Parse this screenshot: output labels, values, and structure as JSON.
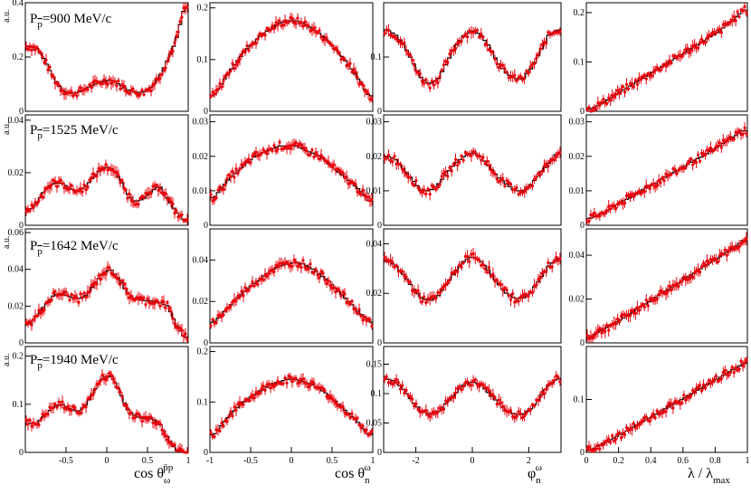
{
  "figure": {
    "data_color": "#e8000b",
    "model_color": "#000000",
    "au_label": "a.u.",
    "row_titles": [
      {
        "p": "P",
        "sub": "p",
        "value": "=900 MeV/c"
      },
      {
        "p": "P",
        "sub": "p",
        "value": "=1525 MeV/c"
      },
      {
        "p": "P",
        "sub": "p",
        "value": "=1642 MeV/c"
      },
      {
        "p": "P",
        "sub": "p",
        "value": "=1940 MeV/c"
      }
    ],
    "x_titles": [
      {
        "main": "cos θ",
        "sub": "ω",
        "sup": "p̄p"
      },
      {
        "main": "cos θ",
        "sub": "n",
        "sup": "ω"
      },
      {
        "main": "φ",
        "sub": "n",
        "sup": "ω"
      },
      {
        "main": "λ / λ",
        "sub": "max",
        "sup": ""
      }
    ]
  },
  "chart_data": [
    {
      "type": "line",
      "row": 0,
      "col": 0,
      "xlim": [
        -1,
        1
      ],
      "ylim": [
        0,
        0.4
      ],
      "xticks": [],
      "xtick_labels": [],
      "yticks": [
        0,
        0.2,
        0.4
      ],
      "ytick_labels": [
        "0",
        "0.2",
        "0.4"
      ],
      "show_au": true,
      "x": [
        -0.95,
        -0.85,
        -0.75,
        -0.65,
        -0.55,
        -0.45,
        -0.35,
        -0.25,
        -0.15,
        -0.05,
        0.05,
        0.15,
        0.25,
        0.35,
        0.45,
        0.55,
        0.65,
        0.75,
        0.85,
        0.95
      ],
      "y": [
        0.24,
        0.23,
        0.18,
        0.12,
        0.08,
        0.065,
        0.07,
        0.085,
        0.1,
        0.11,
        0.115,
        0.1,
        0.08,
        0.07,
        0.07,
        0.09,
        0.13,
        0.19,
        0.26,
        0.38
      ]
    },
    {
      "type": "line",
      "row": 0,
      "col": 1,
      "xlim": [
        -1,
        1
      ],
      "ylim": [
        0,
        0.21
      ],
      "xticks": [],
      "xtick_labels": [],
      "yticks": [
        0,
        0.1,
        0.2
      ],
      "ytick_labels": [
        "0",
        "0.1",
        "0.2"
      ],
      "show_au": false,
      "x": [
        -0.95,
        -0.85,
        -0.75,
        -0.65,
        -0.55,
        -0.45,
        -0.35,
        -0.25,
        -0.15,
        -0.05,
        0.05,
        0.15,
        0.25,
        0.35,
        0.45,
        0.55,
        0.65,
        0.75,
        0.85,
        0.95
      ],
      "y": [
        0.03,
        0.055,
        0.08,
        0.1,
        0.12,
        0.135,
        0.15,
        0.16,
        0.17,
        0.175,
        0.175,
        0.17,
        0.16,
        0.15,
        0.135,
        0.12,
        0.1,
        0.08,
        0.055,
        0.03
      ]
    },
    {
      "type": "line",
      "row": 0,
      "col": 2,
      "xlim": [
        -3.14,
        3.14
      ],
      "ylim": [
        0,
        0.2
      ],
      "xticks": [],
      "xtick_labels": [],
      "yticks": [
        0,
        0.1
      ],
      "ytick_labels": [
        "0",
        "0.1"
      ],
      "show_au": false,
      "x": [
        -3.0,
        -2.7,
        -2.4,
        -2.1,
        -1.8,
        -1.5,
        -1.2,
        -0.9,
        -0.6,
        -0.3,
        0.0,
        0.3,
        0.6,
        0.9,
        1.2,
        1.5,
        1.8,
        2.1,
        2.4,
        2.7,
        3.0
      ],
      "y": [
        0.15,
        0.14,
        0.12,
        0.09,
        0.06,
        0.05,
        0.06,
        0.09,
        0.12,
        0.14,
        0.15,
        0.14,
        0.12,
        0.09,
        0.07,
        0.06,
        0.06,
        0.08,
        0.11,
        0.14,
        0.15
      ]
    },
    {
      "type": "line",
      "row": 0,
      "col": 3,
      "xlim": [
        0,
        1
      ],
      "ylim": [
        0,
        0.22
      ],
      "xticks": [],
      "xtick_labels": [],
      "yticks": [
        0,
        0.1,
        0.2
      ],
      "ytick_labels": [
        "0",
        "0.1",
        "0.2"
      ],
      "show_au": false,
      "x": [
        0.025,
        0.075,
        0.125,
        0.175,
        0.225,
        0.275,
        0.325,
        0.375,
        0.425,
        0.475,
        0.525,
        0.575,
        0.625,
        0.675,
        0.725,
        0.775,
        0.825,
        0.875,
        0.925,
        0.975
      ],
      "y": [
        0.005,
        0.012,
        0.022,
        0.032,
        0.042,
        0.052,
        0.062,
        0.072,
        0.082,
        0.092,
        0.102,
        0.112,
        0.122,
        0.132,
        0.142,
        0.152,
        0.162,
        0.176,
        0.19,
        0.205
      ]
    },
    {
      "type": "line",
      "row": 1,
      "col": 0,
      "xlim": [
        -1,
        1
      ],
      "ylim": [
        0,
        0.042
      ],
      "xticks": [],
      "xtick_labels": [],
      "yticks": [
        0,
        0.02,
        0.04
      ],
      "ytick_labels": [
        "0",
        "0.02",
        "0.04"
      ],
      "show_au": true,
      "x": [
        -0.95,
        -0.85,
        -0.75,
        -0.65,
        -0.55,
        -0.45,
        -0.35,
        -0.25,
        -0.15,
        -0.05,
        0.05,
        0.15,
        0.25,
        0.35,
        0.45,
        0.55,
        0.65,
        0.75,
        0.85,
        0.95
      ],
      "y": [
        0.006,
        0.009,
        0.014,
        0.016,
        0.016,
        0.014,
        0.013,
        0.015,
        0.019,
        0.022,
        0.022,
        0.018,
        0.012,
        0.009,
        0.01,
        0.013,
        0.015,
        0.01,
        0.005,
        0.002
      ]
    },
    {
      "type": "line",
      "row": 1,
      "col": 1,
      "xlim": [
        -1,
        1
      ],
      "ylim": [
        0,
        0.032
      ],
      "xticks": [],
      "xtick_labels": [],
      "yticks": [
        0,
        0.01,
        0.02,
        0.03
      ],
      "ytick_labels": [
        "0",
        "0.01",
        "0.02",
        "0.03"
      ],
      "show_au": false,
      "x": [
        -0.95,
        -0.85,
        -0.75,
        -0.65,
        -0.55,
        -0.45,
        -0.35,
        -0.25,
        -0.15,
        -0.05,
        0.05,
        0.15,
        0.25,
        0.35,
        0.45,
        0.55,
        0.65,
        0.75,
        0.85,
        0.95
      ],
      "y": [
        0.008,
        0.011,
        0.014,
        0.016,
        0.018,
        0.02,
        0.021,
        0.022,
        0.023,
        0.023,
        0.023,
        0.022,
        0.021,
        0.02,
        0.018,
        0.016,
        0.014,
        0.012,
        0.01,
        0.007
      ]
    },
    {
      "type": "line",
      "row": 1,
      "col": 2,
      "xlim": [
        -3.14,
        3.14
      ],
      "ylim": [
        0,
        0.032
      ],
      "xticks": [],
      "xtick_labels": [],
      "yticks": [
        0,
        0.01,
        0.02,
        0.03
      ],
      "ytick_labels": [
        "0",
        "0.01",
        "0.02",
        "0.03"
      ],
      "show_au": false,
      "x": [
        -3.0,
        -2.7,
        -2.4,
        -2.1,
        -1.8,
        -1.5,
        -1.2,
        -0.9,
        -0.6,
        -0.3,
        0.0,
        0.3,
        0.6,
        0.9,
        1.2,
        1.5,
        1.8,
        2.1,
        2.4,
        2.7,
        3.0
      ],
      "y": [
        0.02,
        0.019,
        0.016,
        0.013,
        0.01,
        0.01,
        0.012,
        0.015,
        0.018,
        0.02,
        0.021,
        0.02,
        0.017,
        0.014,
        0.012,
        0.01,
        0.01,
        0.012,
        0.015,
        0.018,
        0.021
      ]
    },
    {
      "type": "line",
      "row": 1,
      "col": 3,
      "xlim": [
        0,
        1
      ],
      "ylim": [
        0,
        0.032
      ],
      "xticks": [],
      "xtick_labels": [],
      "yticks": [
        0,
        0.01,
        0.02,
        0.03
      ],
      "ytick_labels": [
        "0",
        "0.01",
        "0.02",
        "0.03"
      ],
      "show_au": false,
      "x": [
        0.025,
        0.075,
        0.125,
        0.175,
        0.225,
        0.275,
        0.325,
        0.375,
        0.425,
        0.475,
        0.525,
        0.575,
        0.625,
        0.675,
        0.725,
        0.775,
        0.825,
        0.875,
        0.925,
        0.975
      ],
      "y": [
        0.002,
        0.003,
        0.004,
        0.0055,
        0.007,
        0.008,
        0.0095,
        0.011,
        0.012,
        0.0135,
        0.015,
        0.016,
        0.0175,
        0.019,
        0.02,
        0.0215,
        0.023,
        0.0245,
        0.026,
        0.0275
      ]
    },
    {
      "type": "line",
      "row": 2,
      "col": 0,
      "xlim": [
        -1,
        1
      ],
      "ylim": [
        0,
        0.062
      ],
      "xticks": [],
      "xtick_labels": [],
      "yticks": [
        0,
        0.02,
        0.04,
        0.06
      ],
      "ytick_labels": [
        "0",
        "0.02",
        "0.04",
        "0.06"
      ],
      "show_au": true,
      "x": [
        -0.95,
        -0.85,
        -0.75,
        -0.65,
        -0.55,
        -0.45,
        -0.35,
        -0.25,
        -0.15,
        -0.05,
        0.05,
        0.15,
        0.25,
        0.35,
        0.45,
        0.55,
        0.65,
        0.75,
        0.85,
        0.95
      ],
      "y": [
        0.01,
        0.015,
        0.021,
        0.026,
        0.027,
        0.025,
        0.024,
        0.026,
        0.032,
        0.038,
        0.04,
        0.035,
        0.027,
        0.024,
        0.023,
        0.023,
        0.022,
        0.02,
        0.01,
        0.003
      ]
    },
    {
      "type": "line",
      "row": 2,
      "col": 1,
      "xlim": [
        -1,
        1
      ],
      "ylim": [
        0,
        0.055
      ],
      "xticks": [],
      "xtick_labels": [],
      "yticks": [
        0,
        0.02,
        0.04
      ],
      "ytick_labels": [
        "0",
        "0.02",
        "0.04"
      ],
      "show_au": false,
      "x": [
        -0.95,
        -0.85,
        -0.75,
        -0.65,
        -0.55,
        -0.45,
        -0.35,
        -0.25,
        -0.15,
        -0.05,
        0.05,
        0.15,
        0.25,
        0.35,
        0.45,
        0.55,
        0.65,
        0.75,
        0.85,
        0.95
      ],
      "y": [
        0.01,
        0.014,
        0.018,
        0.022,
        0.026,
        0.029,
        0.032,
        0.035,
        0.037,
        0.038,
        0.039,
        0.038,
        0.036,
        0.033,
        0.03,
        0.026,
        0.022,
        0.018,
        0.014,
        0.01
      ]
    },
    {
      "type": "line",
      "row": 2,
      "col": 2,
      "xlim": [
        -3.14,
        3.14
      ],
      "ylim": [
        0,
        0.046
      ],
      "xticks": [],
      "xtick_labels": [],
      "yticks": [
        0,
        0.02,
        0.04
      ],
      "ytick_labels": [
        "0",
        "0.02",
        "0.04"
      ],
      "show_au": false,
      "x": [
        -3.0,
        -2.7,
        -2.4,
        -2.1,
        -1.8,
        -1.5,
        -1.2,
        -0.9,
        -0.6,
        -0.3,
        0.0,
        0.3,
        0.6,
        0.9,
        1.2,
        1.5,
        1.8,
        2.1,
        2.4,
        2.7,
        3.0
      ],
      "y": [
        0.033,
        0.031,
        0.027,
        0.022,
        0.018,
        0.017,
        0.019,
        0.024,
        0.029,
        0.033,
        0.035,
        0.033,
        0.029,
        0.024,
        0.02,
        0.018,
        0.018,
        0.021,
        0.026,
        0.031,
        0.034
      ]
    },
    {
      "type": "line",
      "row": 2,
      "col": 3,
      "xlim": [
        0,
        1
      ],
      "ylim": [
        0,
        0.052
      ],
      "xticks": [],
      "xtick_labels": [],
      "yticks": [
        0,
        0.02,
        0.04
      ],
      "ytick_labels": [
        "0",
        "0.02",
        "0.04"
      ],
      "show_au": false,
      "x": [
        0.025,
        0.075,
        0.125,
        0.175,
        0.225,
        0.275,
        0.325,
        0.375,
        0.425,
        0.475,
        0.525,
        0.575,
        0.625,
        0.675,
        0.725,
        0.775,
        0.825,
        0.875,
        0.925,
        0.975
      ],
      "y": [
        0.003,
        0.005,
        0.007,
        0.009,
        0.011,
        0.0135,
        0.016,
        0.018,
        0.0205,
        0.023,
        0.025,
        0.0275,
        0.03,
        0.032,
        0.0345,
        0.037,
        0.039,
        0.0415,
        0.044,
        0.047
      ]
    },
    {
      "type": "line",
      "row": 3,
      "col": 0,
      "xlim": [
        -1,
        1
      ],
      "ylim": [
        0,
        0.22
      ],
      "xticks": [
        -0.5,
        0,
        0.5,
        1
      ],
      "xtick_labels": [
        "-0.5",
        "0",
        "0.5",
        "1"
      ],
      "yticks": [
        0,
        0.1,
        0.2
      ],
      "ytick_labels": [
        "0",
        "0.1",
        "0.2"
      ],
      "show_au": true,
      "x": [
        -0.95,
        -0.85,
        -0.75,
        -0.65,
        -0.55,
        -0.45,
        -0.35,
        -0.25,
        -0.15,
        -0.05,
        0.05,
        0.15,
        0.25,
        0.35,
        0.45,
        0.55,
        0.65,
        0.75,
        0.85,
        0.95
      ],
      "y": [
        0.06,
        0.06,
        0.08,
        0.095,
        0.1,
        0.09,
        0.085,
        0.1,
        0.13,
        0.155,
        0.16,
        0.13,
        0.09,
        0.075,
        0.07,
        0.07,
        0.06,
        0.03,
        0.005,
        0.0
      ]
    },
    {
      "type": "line",
      "row": 3,
      "col": 1,
      "xlim": [
        -1,
        1
      ],
      "ylim": [
        0,
        0.21
      ],
      "xticks": [
        -1,
        -0.5,
        0,
        0.5,
        1
      ],
      "xtick_labels": [
        "-1",
        "-0.5",
        "0",
        "0.5",
        "1"
      ],
      "yticks": [
        0,
        0.1,
        0.2
      ],
      "ytick_labels": [
        "0",
        "0.1",
        "0.2"
      ],
      "show_au": false,
      "x": [
        -0.95,
        -0.85,
        -0.75,
        -0.65,
        -0.55,
        -0.45,
        -0.35,
        -0.25,
        -0.15,
        -0.05,
        0.05,
        0.15,
        0.25,
        0.35,
        0.45,
        0.55,
        0.65,
        0.75,
        0.85,
        0.95
      ],
      "y": [
        0.035,
        0.055,
        0.075,
        0.09,
        0.105,
        0.115,
        0.125,
        0.135,
        0.14,
        0.145,
        0.145,
        0.14,
        0.135,
        0.125,
        0.115,
        0.1,
        0.085,
        0.07,
        0.055,
        0.035
      ]
    },
    {
      "type": "line",
      "row": 3,
      "col": 2,
      "xlim": [
        -3.14,
        3.14
      ],
      "ylim": [
        0,
        0.18
      ],
      "xticks": [
        -2,
        0,
        2
      ],
      "xtick_labels": [
        "-2",
        "0",
        "2"
      ],
      "yticks": [
        0,
        0.05,
        0.1,
        0.15
      ],
      "ytick_labels": [
        "0",
        "0.05",
        "0.1",
        "0.15"
      ],
      "show_au": false,
      "x": [
        -3.0,
        -2.7,
        -2.4,
        -2.1,
        -1.8,
        -1.5,
        -1.2,
        -0.9,
        -0.6,
        -0.3,
        0.0,
        0.3,
        0.6,
        0.9,
        1.2,
        1.5,
        1.8,
        2.1,
        2.4,
        2.7,
        3.0
      ],
      "y": [
        0.125,
        0.12,
        0.105,
        0.085,
        0.07,
        0.065,
        0.07,
        0.085,
        0.1,
        0.115,
        0.12,
        0.115,
        0.1,
        0.085,
        0.07,
        0.065,
        0.065,
        0.075,
        0.095,
        0.115,
        0.125
      ]
    },
    {
      "type": "line",
      "row": 3,
      "col": 3,
      "xlim": [
        0,
        1
      ],
      "ylim": [
        0,
        0.2
      ],
      "xticks": [
        0,
        0.2,
        0.4,
        0.6,
        0.8,
        1
      ],
      "xtick_labels": [
        "0",
        "0.2",
        "0.4",
        "0.6",
        "0.8",
        "1"
      ],
      "yticks": [
        0,
        0.1
      ],
      "ytick_labels": [
        "0",
        "0.1"
      ],
      "show_au": false,
      "x": [
        0.025,
        0.075,
        0.125,
        0.175,
        0.225,
        0.275,
        0.325,
        0.375,
        0.425,
        0.475,
        0.525,
        0.575,
        0.625,
        0.675,
        0.725,
        0.775,
        0.825,
        0.875,
        0.925,
        0.975
      ],
      "y": [
        0.004,
        0.012,
        0.02,
        0.028,
        0.036,
        0.045,
        0.054,
        0.062,
        0.071,
        0.08,
        0.088,
        0.097,
        0.106,
        0.115,
        0.123,
        0.132,
        0.141,
        0.15,
        0.159,
        0.168
      ]
    }
  ]
}
